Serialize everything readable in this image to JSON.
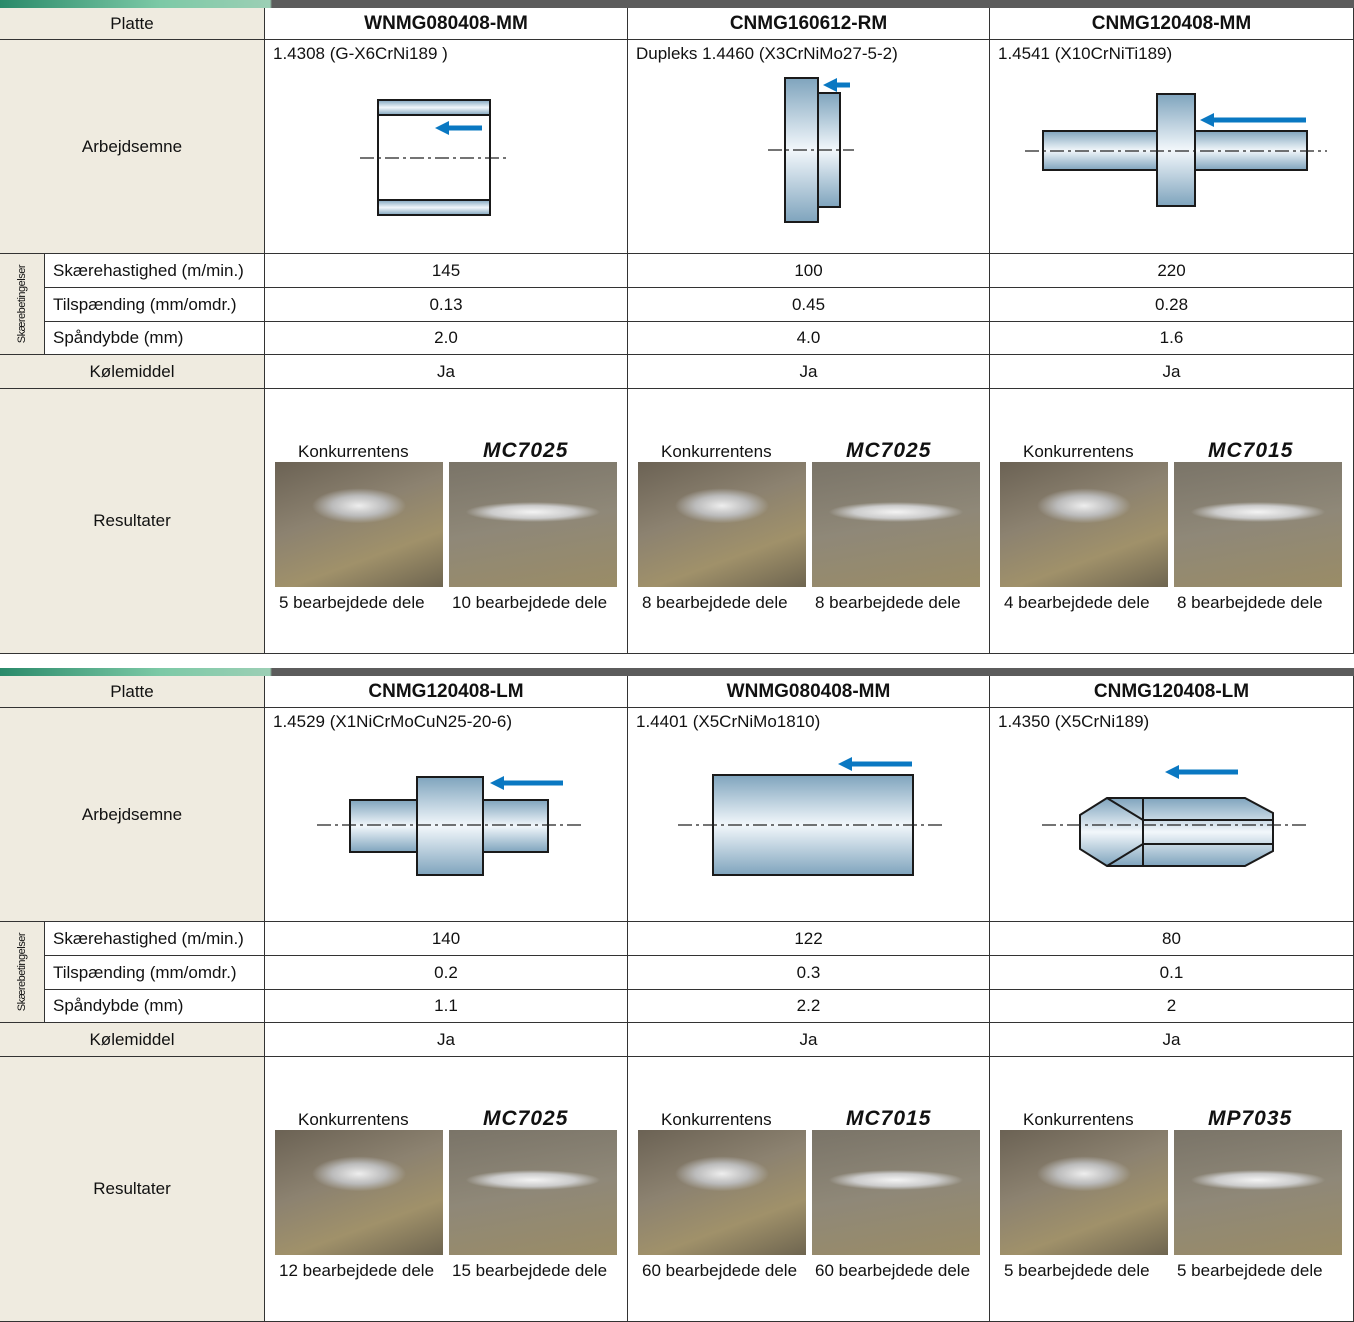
{
  "tables": [
    {
      "header": [
        "Platte",
        "WNMG080408-MM",
        "CNMG160612-RM",
        "CNMG120408-MM"
      ],
      "workpiece_label": "Arbejdsemne",
      "materials": [
        "1.4308 (G-X6CrNi189 )",
        "Dupleks 1.4460 (X3CrNiMo27-5-2)",
        "1.4541 (X10CrNiTi189)"
      ],
      "group_label": "Skærebetingelser",
      "conditions": [
        {
          "label": "Skærehastighed (m/min.)",
          "values": [
            "145",
            "100",
            "220"
          ]
        },
        {
          "label": "Tilspænding (mm/omdr.)",
          "values": [
            "0.13",
            "0.45",
            "0.28"
          ]
        },
        {
          "label": "Spåndybde (mm)",
          "values": [
            "2.0",
            "4.0",
            "1.6"
          ]
        }
      ],
      "coolant": {
        "label": "Kølemiddel",
        "values": [
          "Ja",
          "Ja",
          "Ja"
        ]
      },
      "results": {
        "label": "Resultater",
        "tests": [
          {
            "left": "Konkurrentens",
            "right": "MC7025",
            "left_parts": "5 bearbejdede dele",
            "right_parts": "10 bearbejdede dele"
          },
          {
            "left": "Konkurrentens",
            "right": "MC7025",
            "left_parts": "8 bearbejdede dele",
            "right_parts": "8 bearbejdede dele"
          },
          {
            "left": "Konkurrentens",
            "right": "MC7015",
            "left_parts": "4 bearbejdede dele",
            "right_parts": "8 bearbejdede dele"
          }
        ]
      }
    },
    {
      "header": [
        "Platte",
        "CNMG120408-LM",
        "WNMG080408-MM",
        "CNMG120408-LM"
      ],
      "workpiece_label": "Arbejdsemne",
      "materials": [
        "1.4529 (X1NiCrMoCuN25-20-6)",
        "1.4401 (X5CrNiMo1810)",
        "1.4350 (X5CrNi189)"
      ],
      "group_label": "Skærebetingelser",
      "conditions": [
        {
          "label": "Skærehastighed (m/min.)",
          "values": [
            "140",
            "122",
            "80"
          ]
        },
        {
          "label": "Tilspænding (mm/omdr.)",
          "values": [
            "0.2",
            "0.3",
            "0.1"
          ]
        },
        {
          "label": "Spåndybde (mm)",
          "values": [
            "1.1",
            "2.2",
            "2"
          ]
        }
      ],
      "coolant": {
        "label": "Kølemiddel",
        "values": [
          "Ja",
          "Ja",
          "Ja"
        ]
      },
      "results": {
        "label": "Resultater",
        "tests": [
          {
            "left": "Konkurrentens",
            "right": "MC7025",
            "left_parts": "12 bearbejdede dele",
            "right_parts": "15 bearbejdede dele"
          },
          {
            "left": "Konkurrentens",
            "right": "MC7015",
            "left_parts": "60 bearbejdede dele",
            "right_parts": "60 bearbejdede dele"
          },
          {
            "left": "Konkurrentens",
            "right": "MP7035",
            "left_parts": "5 bearbejdede dele",
            "right_parts": "5 bearbejdede dele"
          }
        ]
      }
    }
  ]
}
